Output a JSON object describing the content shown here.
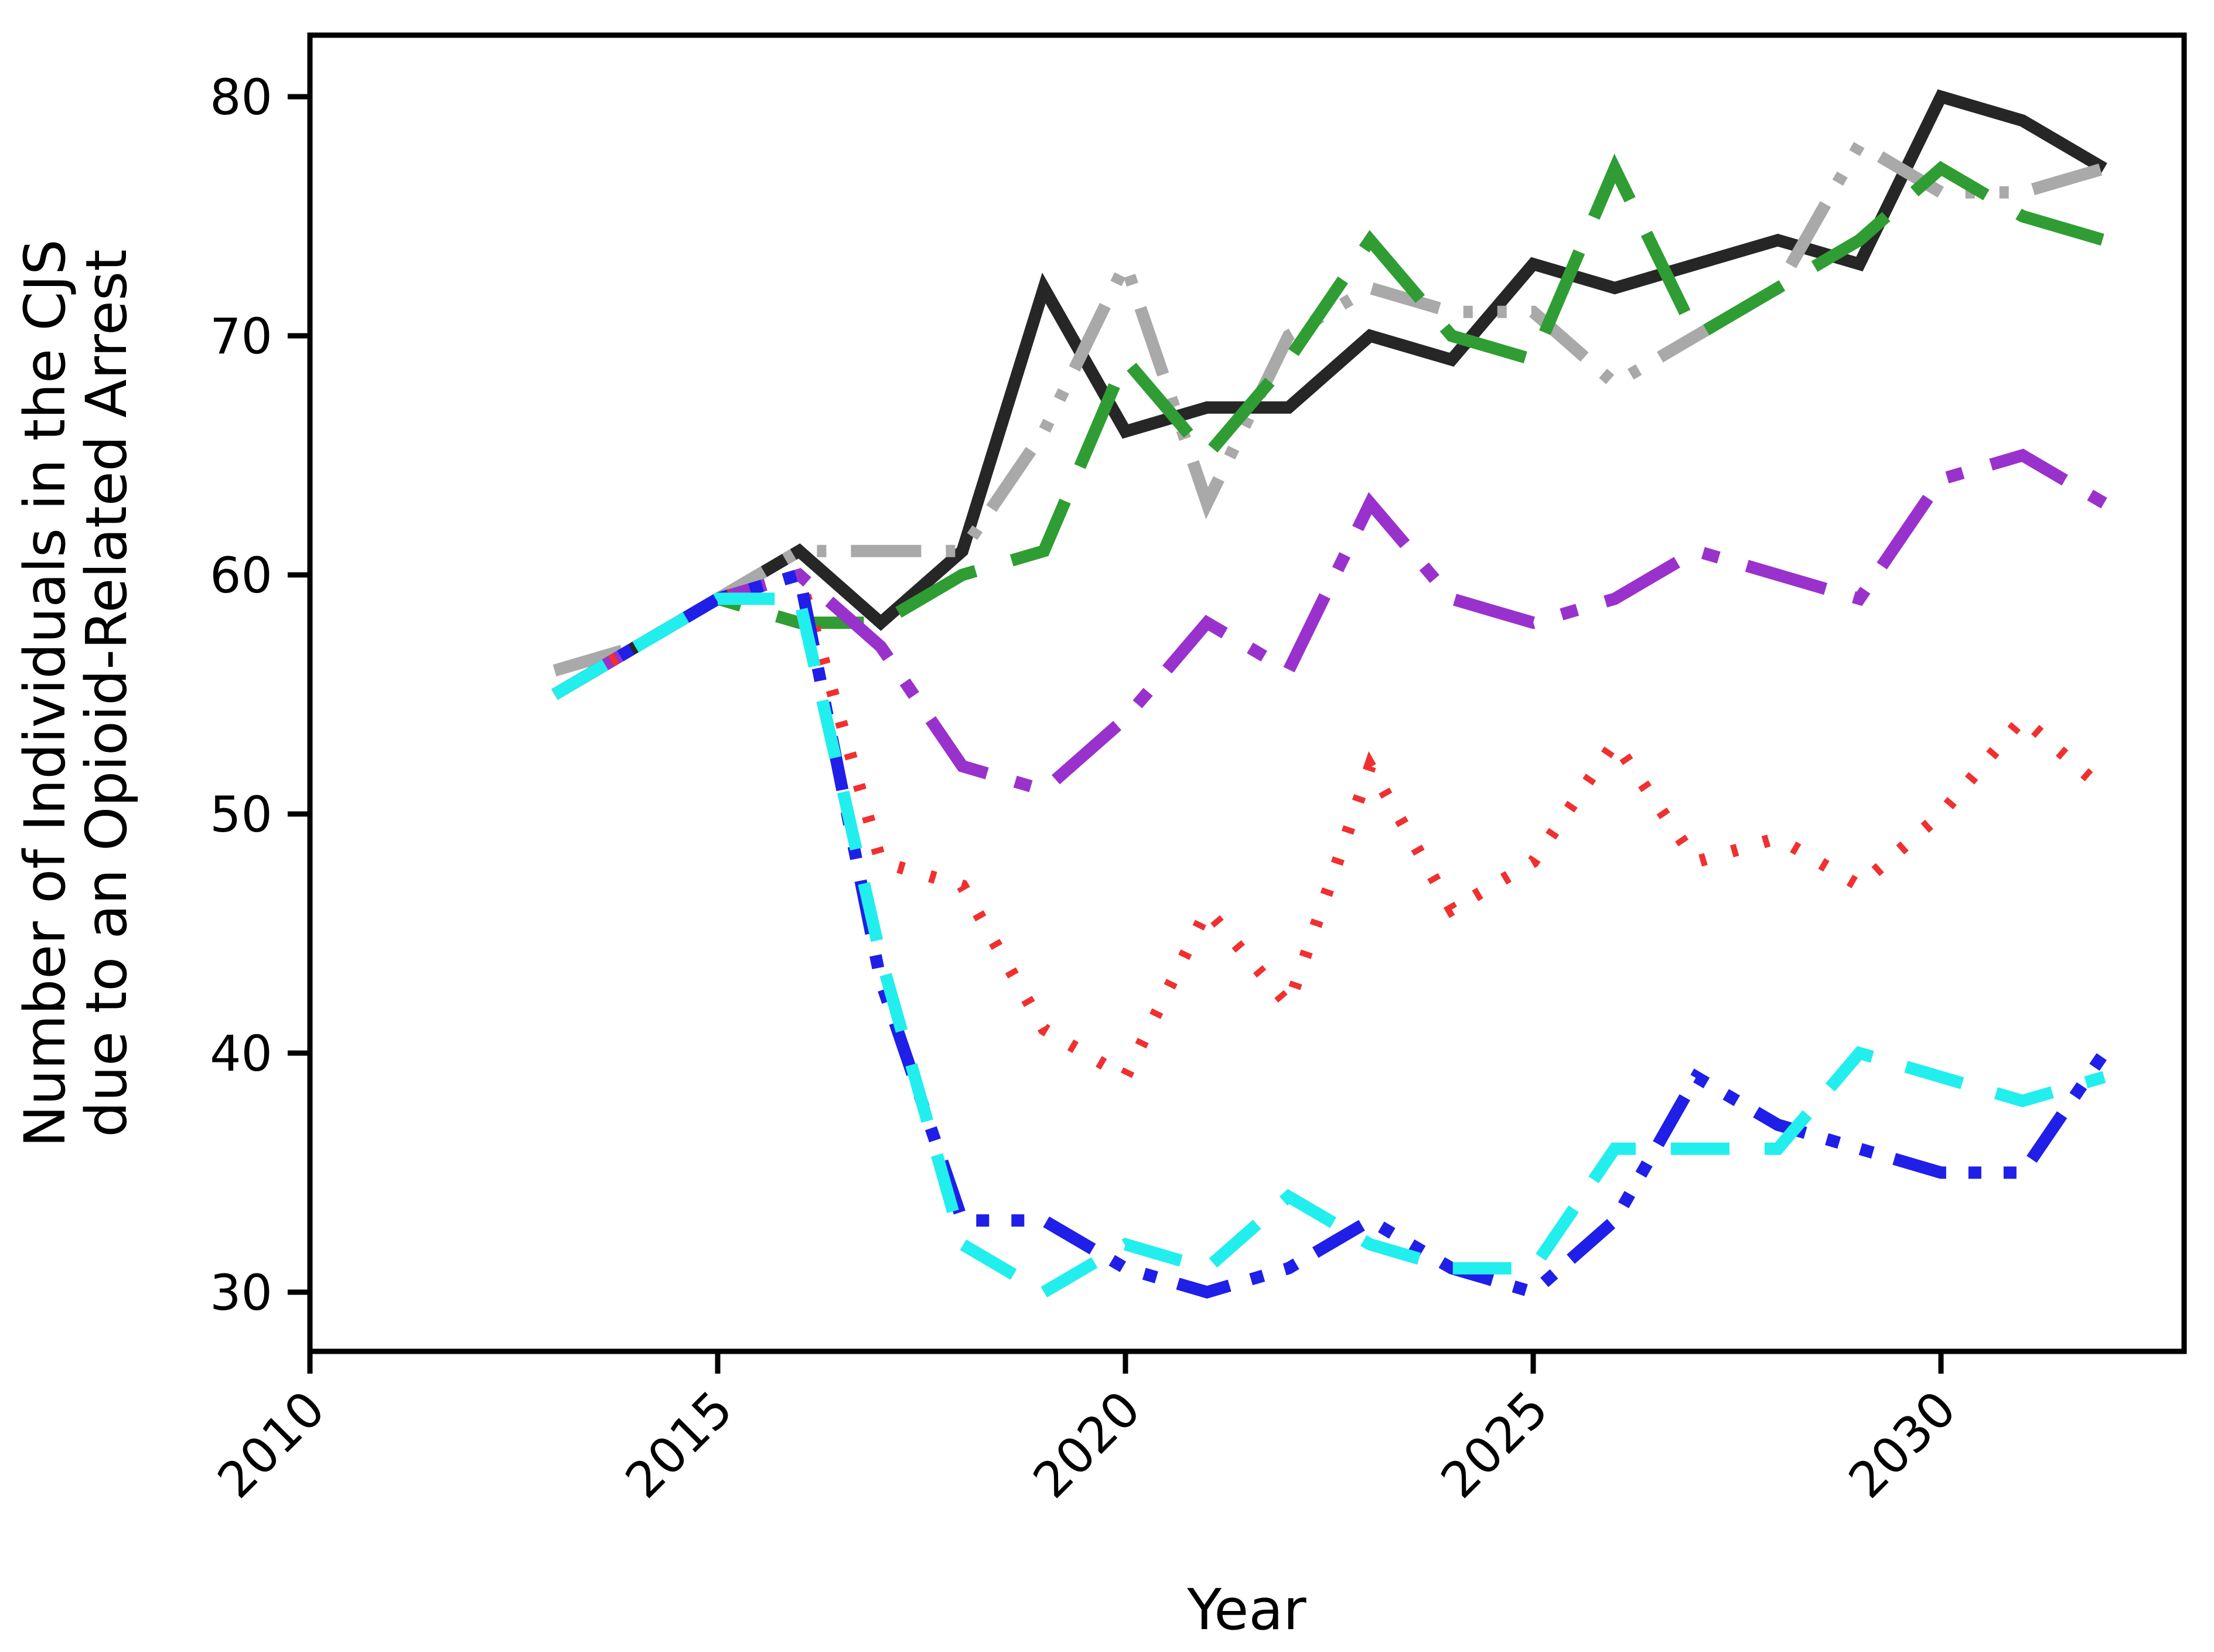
{
  "figure": {
    "background": "#ffffff",
    "xlabel": "Year",
    "ylabel_line1": "Number of Individuals in the CJS",
    "ylabel_line2": "due to an Opioid-Related Arrest"
  },
  "chart_data": {
    "type": "line",
    "title": "",
    "xlabel": "Year",
    "ylabel": "Number of Individuals in the CJS due to an Opioid-Related Arrest",
    "x_ticks": [
      2010,
      2015,
      2020,
      2025,
      2030
    ],
    "y_ticks": [
      30,
      40,
      50,
      60,
      70,
      80
    ],
    "xlim": [
      2010,
      2033
    ],
    "ylim": [
      27.5,
      82.5
    ],
    "grid": false,
    "legend": "none",
    "x": [
      2013,
      2014,
      2015,
      2016,
      2017,
      2018,
      2019,
      2020,
      2021,
      2022,
      2023,
      2024,
      2025,
      2026,
      2027,
      2028,
      2029,
      2030,
      2031,
      2032
    ],
    "series": [
      {
        "name": "black-solid",
        "color": "#262626",
        "style": "solid",
        "values": [
          55,
          57,
          59,
          61,
          58,
          61,
          72,
          66,
          67,
          67,
          70,
          69,
          73,
          72,
          73,
          74,
          73,
          80,
          79,
          77
        ]
      },
      {
        "name": "gray-dash-dot-dot",
        "color": "#a9a9a9",
        "style": "dashdotdot",
        "values": [
          56,
          57,
          59,
          61,
          61,
          61,
          66,
          73,
          63,
          70,
          72,
          71,
          71,
          68,
          70,
          72,
          78,
          76,
          76,
          77
        ]
      },
      {
        "name": "green-long-dash",
        "color": "#2f9d33",
        "style": "longdash",
        "values": [
          55,
          57,
          59,
          58,
          58,
          60,
          61,
          69,
          65,
          69,
          74,
          70,
          69,
          77,
          70,
          72,
          74,
          77,
          75,
          74
        ]
      },
      {
        "name": "purple-dash-dot",
        "color": "#9932cc",
        "style": "dashdot",
        "values": [
          55,
          57,
          59,
          60,
          57,
          52,
          51,
          54,
          58,
          56,
          63,
          59,
          58,
          59,
          61,
          60,
          59,
          64,
          65,
          63
        ]
      },
      {
        "name": "red-dotted",
        "color": "#f03030",
        "style": "dotted",
        "values": [
          55,
          57,
          59,
          60,
          48,
          47,
          41,
          39,
          46,
          42,
          52,
          46,
          48,
          53,
          48,
          49,
          47,
          50,
          54,
          51
        ]
      },
      {
        "name": "blue-dash-dot-dot",
        "color": "#1f1fe8",
        "style": "bluedashdotdot",
        "values": [
          55,
          57,
          59,
          60,
          43,
          33,
          33,
          31,
          30,
          31,
          33,
          31,
          30,
          33,
          39,
          37,
          36,
          35,
          35,
          40
        ]
      },
      {
        "name": "cyan-dashed",
        "color": "#22eeee",
        "style": "dashed",
        "values": [
          55,
          57,
          59,
          59,
          44,
          32,
          30,
          32,
          31,
          34,
          32,
          31,
          31,
          36,
          36,
          36,
          40,
          39,
          38,
          39
        ]
      }
    ]
  },
  "geometry_note": "plot box left 529, right 3728, top 60, bottom 2306; x(year)=529+(year-2010)*139.2; y(v)=2205-(v-30)*40.8"
}
